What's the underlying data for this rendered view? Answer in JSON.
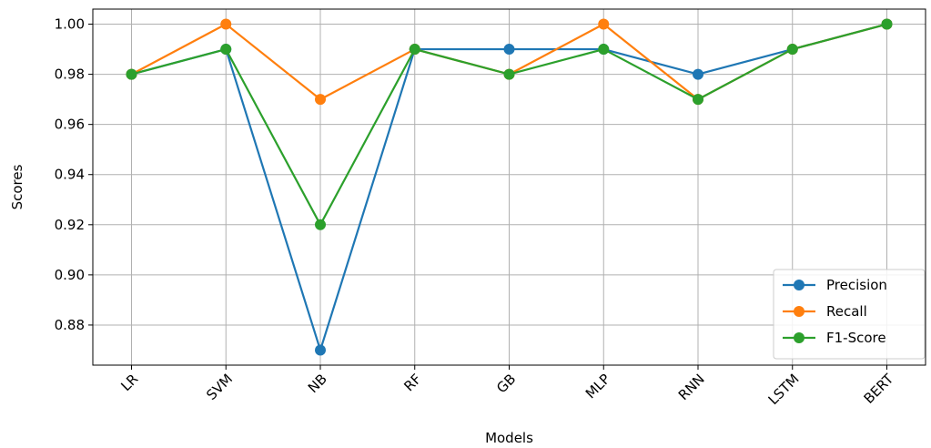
{
  "chart_data": {
    "type": "line",
    "title": "",
    "xlabel": "Models",
    "ylabel": "Scores",
    "categories": [
      "LR",
      "SVM",
      "NB",
      "RF",
      "GB",
      "MLP",
      "RNN",
      "LSTM",
      "BERT"
    ],
    "ylim": [
      0.864,
      1.006
    ],
    "yticks": [
      "0.88",
      "0.90",
      "0.92",
      "0.94",
      "0.96",
      "0.98",
      "1.00"
    ],
    "grid": true,
    "legend_position": "lower-right",
    "series": [
      {
        "name": "Precision",
        "color": "#1f77b4",
        "values": [
          0.98,
          0.99,
          0.87,
          0.99,
          0.99,
          0.99,
          0.98,
          0.99,
          1.0
        ]
      },
      {
        "name": "Recall",
        "color": "#ff7f0e",
        "values": [
          0.98,
          1.0,
          0.97,
          0.99,
          0.98,
          1.0,
          0.97,
          0.99,
          1.0
        ]
      },
      {
        "name": "F1-Score",
        "color": "#2ca02c",
        "values": [
          0.98,
          0.99,
          0.92,
          0.99,
          0.98,
          0.99,
          0.97,
          0.99,
          1.0
        ]
      }
    ]
  }
}
